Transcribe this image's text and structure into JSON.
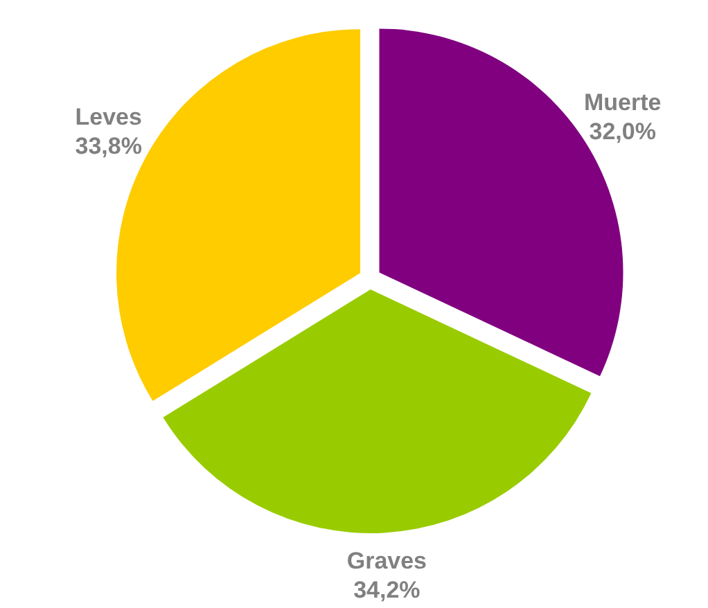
{
  "chart_data": {
    "type": "pie",
    "categories": [
      "Muerte",
      "Graves",
      "Leves"
    ],
    "values": [
      32.0,
      34.2,
      33.8
    ],
    "value_labels": [
      "32,0%",
      "34,2%",
      "33,8%"
    ],
    "colors": [
      "#800080",
      "#99cc00",
      "#ffcc00"
    ],
    "legend": false
  }
}
